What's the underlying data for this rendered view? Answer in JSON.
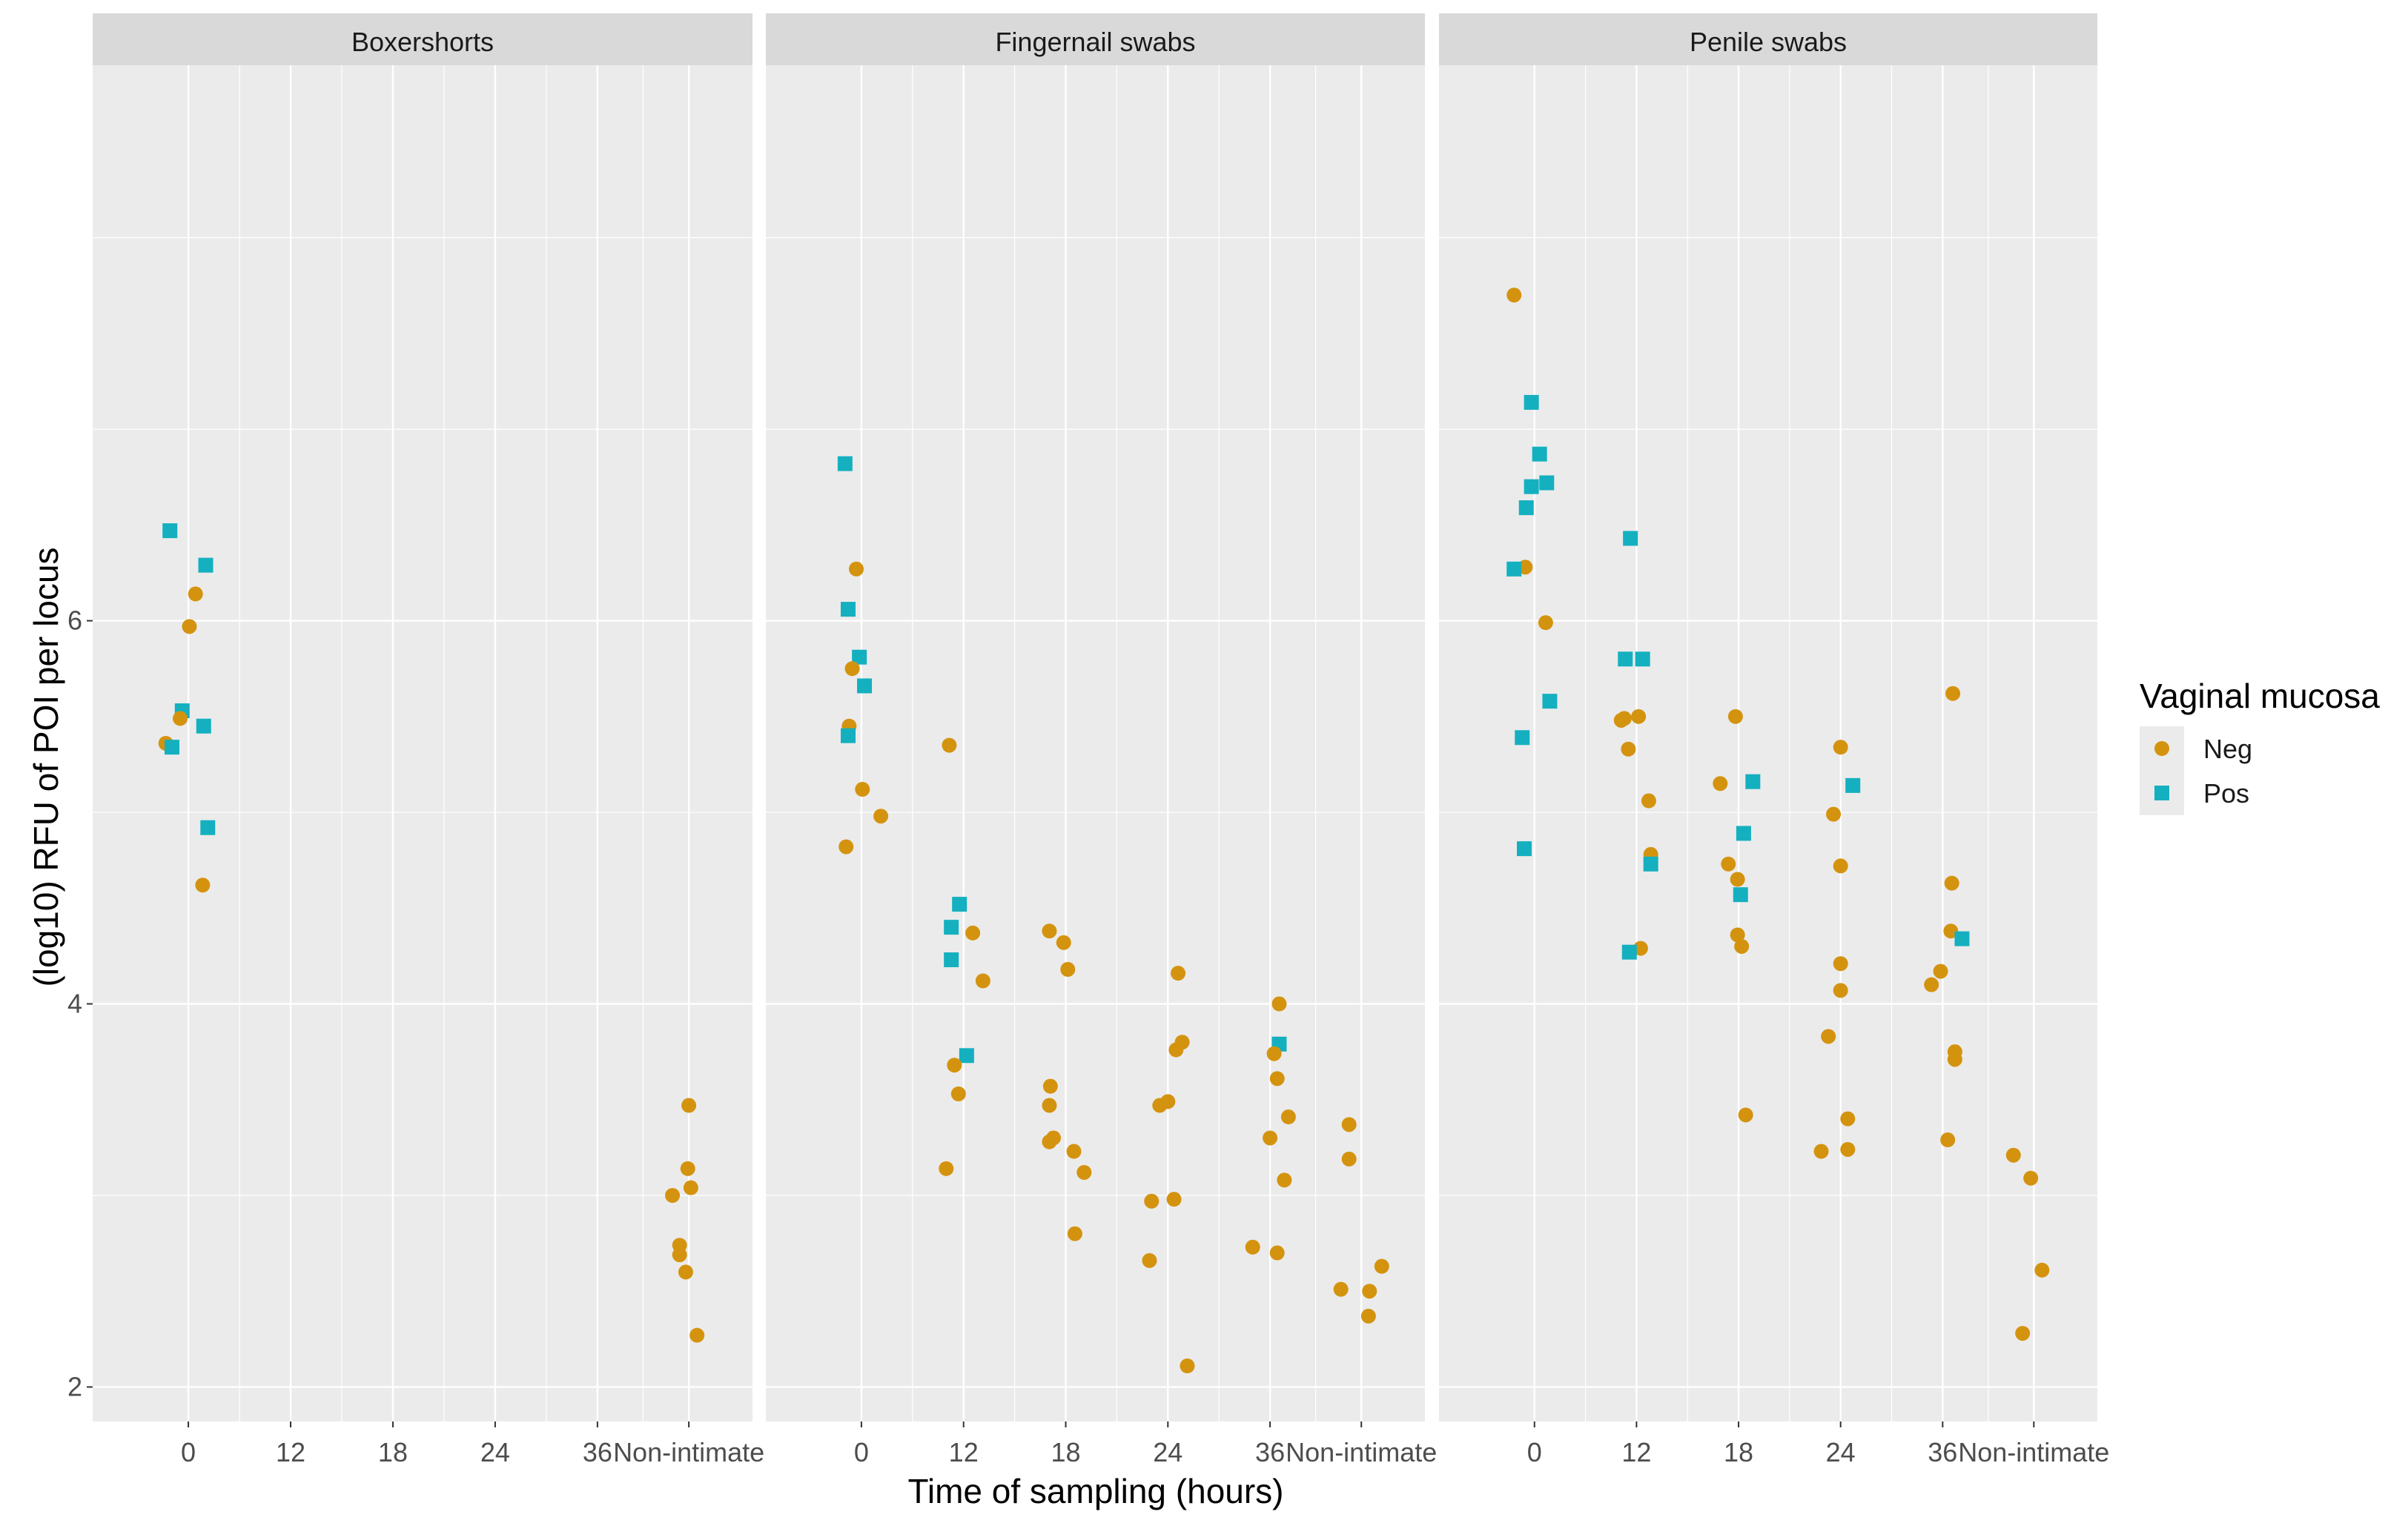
{
  "chart_data": {
    "type": "scatter",
    "facet_type": "facet_wrap",
    "title": "",
    "xlabel": "Time of sampling (hours)",
    "ylabel": "(log10) RFU of POI per locus",
    "x_categories": [
      "0",
      "12",
      "18",
      "24",
      "36",
      "Non-intimate"
    ],
    "ylim": [
      1.82,
      8.9
    ],
    "y_ticks": [
      2,
      4,
      6
    ],
    "legend": {
      "title": "Vaginal mucosa",
      "position": "right",
      "entries": [
        {
          "name": "Neg",
          "color": "#d4930f",
          "shape": "circle"
        },
        {
          "name": "Pos",
          "color": "#14b0c0",
          "shape": "square"
        }
      ]
    },
    "facets": [
      {
        "name": "Boxershorts",
        "points": [
          {
            "x": "0",
            "jitter": -0.18,
            "y": 6.47,
            "group": "Pos"
          },
          {
            "x": "0",
            "jitter": 0.17,
            "y": 6.29,
            "group": "Pos"
          },
          {
            "x": "0",
            "jitter": 0.07,
            "y": 6.14,
            "group": "Neg"
          },
          {
            "x": "0",
            "jitter": 0.01,
            "y": 5.97,
            "group": "Neg"
          },
          {
            "x": "0",
            "jitter": -0.06,
            "y": 5.53,
            "group": "Pos"
          },
          {
            "x": "0",
            "jitter": -0.08,
            "y": 5.49,
            "group": "Neg"
          },
          {
            "x": "0",
            "jitter": 0.15,
            "y": 5.45,
            "group": "Pos"
          },
          {
            "x": "0",
            "jitter": -0.22,
            "y": 5.36,
            "group": "Neg"
          },
          {
            "x": "0",
            "jitter": -0.16,
            "y": 5.34,
            "group": "Pos"
          },
          {
            "x": "0",
            "jitter": 0.19,
            "y": 4.92,
            "group": "Pos"
          },
          {
            "x": "0",
            "jitter": 0.14,
            "y": 4.62,
            "group": "Neg"
          },
          {
            "x": "Non-intimate",
            "jitter": 0.0,
            "y": 3.47,
            "group": "Neg"
          },
          {
            "x": "Non-intimate",
            "jitter": -0.01,
            "y": 3.14,
            "group": "Neg"
          },
          {
            "x": "Non-intimate",
            "jitter": 0.02,
            "y": 3.04,
            "group": "Neg"
          },
          {
            "x": "Non-intimate",
            "jitter": -0.16,
            "y": 3.0,
            "group": "Neg"
          },
          {
            "x": "Non-intimate",
            "jitter": -0.09,
            "y": 2.74,
            "group": "Neg"
          },
          {
            "x": "Non-intimate",
            "jitter": -0.09,
            "y": 2.69,
            "group": "Neg"
          },
          {
            "x": "Non-intimate",
            "jitter": -0.03,
            "y": 2.6,
            "group": "Neg"
          },
          {
            "x": "Non-intimate",
            "jitter": 0.08,
            "y": 2.27,
            "group": "Neg"
          }
        ]
      },
      {
        "name": "Fingernail swabs",
        "points": [
          {
            "x": "0",
            "jitter": -0.16,
            "y": 6.82,
            "group": "Pos"
          },
          {
            "x": "0",
            "jitter": -0.05,
            "y": 6.27,
            "group": "Neg"
          },
          {
            "x": "0",
            "jitter": -0.13,
            "y": 6.06,
            "group": "Pos"
          },
          {
            "x": "0",
            "jitter": -0.02,
            "y": 5.81,
            "group": "Pos"
          },
          {
            "x": "0",
            "jitter": -0.09,
            "y": 5.75,
            "group": "Neg"
          },
          {
            "x": "0",
            "jitter": 0.03,
            "y": 5.66,
            "group": "Pos"
          },
          {
            "x": "0",
            "jitter": -0.12,
            "y": 5.45,
            "group": "Neg"
          },
          {
            "x": "0",
            "jitter": -0.13,
            "y": 5.4,
            "group": "Pos"
          },
          {
            "x": "0",
            "jitter": 0.01,
            "y": 5.12,
            "group": "Neg"
          },
          {
            "x": "0",
            "jitter": 0.19,
            "y": 4.98,
            "group": "Neg"
          },
          {
            "x": "0",
            "jitter": -0.15,
            "y": 4.82,
            "group": "Neg"
          },
          {
            "x": "12",
            "jitter": -0.14,
            "y": 5.35,
            "group": "Neg"
          },
          {
            "x": "12",
            "jitter": -0.04,
            "y": 4.52,
            "group": "Pos"
          },
          {
            "x": "12",
            "jitter": -0.12,
            "y": 4.4,
            "group": "Pos"
          },
          {
            "x": "12",
            "jitter": 0.09,
            "y": 4.37,
            "group": "Neg"
          },
          {
            "x": "12",
            "jitter": -0.12,
            "y": 4.23,
            "group": "Pos"
          },
          {
            "x": "12",
            "jitter": 0.19,
            "y": 4.12,
            "group": "Neg"
          },
          {
            "x": "12",
            "jitter": 0.03,
            "y": 3.73,
            "group": "Pos"
          },
          {
            "x": "12",
            "jitter": -0.09,
            "y": 3.68,
            "group": "Neg"
          },
          {
            "x": "12",
            "jitter": -0.05,
            "y": 3.53,
            "group": "Neg"
          },
          {
            "x": "12",
            "jitter": -0.17,
            "y": 3.14,
            "group": "Neg"
          },
          {
            "x": "18",
            "jitter": -0.16,
            "y": 4.38,
            "group": "Neg"
          },
          {
            "x": "18",
            "jitter": -0.02,
            "y": 4.32,
            "group": "Neg"
          },
          {
            "x": "18",
            "jitter": 0.02,
            "y": 4.18,
            "group": "Neg"
          },
          {
            "x": "18",
            "jitter": -0.15,
            "y": 3.57,
            "group": "Neg"
          },
          {
            "x": "18",
            "jitter": -0.16,
            "y": 3.47,
            "group": "Neg"
          },
          {
            "x": "18",
            "jitter": -0.12,
            "y": 3.3,
            "group": "Neg"
          },
          {
            "x": "18",
            "jitter": -0.16,
            "y": 3.28,
            "group": "Neg"
          },
          {
            "x": "18",
            "jitter": 0.08,
            "y": 3.23,
            "group": "Neg"
          },
          {
            "x": "18",
            "jitter": 0.18,
            "y": 3.12,
            "group": "Neg"
          },
          {
            "x": "18",
            "jitter": 0.09,
            "y": 2.8,
            "group": "Neg"
          },
          {
            "x": "24",
            "jitter": 0.1,
            "y": 4.16,
            "group": "Neg"
          },
          {
            "x": "24",
            "jitter": 0.14,
            "y": 3.8,
            "group": "Neg"
          },
          {
            "x": "24",
            "jitter": 0.08,
            "y": 3.76,
            "group": "Neg"
          },
          {
            "x": "24",
            "jitter": 0.0,
            "y": 3.49,
            "group": "Neg"
          },
          {
            "x": "24",
            "jitter": -0.08,
            "y": 3.47,
            "group": "Neg"
          },
          {
            "x": "24",
            "jitter": 0.06,
            "y": 2.98,
            "group": "Neg"
          },
          {
            "x": "24",
            "jitter": -0.16,
            "y": 2.97,
            "group": "Neg"
          },
          {
            "x": "24",
            "jitter": -0.18,
            "y": 2.66,
            "group": "Neg"
          },
          {
            "x": "24",
            "jitter": 0.19,
            "y": 2.11,
            "group": "Neg"
          },
          {
            "x": "36",
            "jitter": 0.09,
            "y": 4.0,
            "group": "Neg"
          },
          {
            "x": "36",
            "jitter": 0.09,
            "y": 3.79,
            "group": "Pos"
          },
          {
            "x": "36",
            "jitter": 0.04,
            "y": 3.74,
            "group": "Neg"
          },
          {
            "x": "36",
            "jitter": 0.07,
            "y": 3.61,
            "group": "Neg"
          },
          {
            "x": "36",
            "jitter": 0.18,
            "y": 3.41,
            "group": "Neg"
          },
          {
            "x": "36",
            "jitter": 0.0,
            "y": 3.3,
            "group": "Neg"
          },
          {
            "x": "36",
            "jitter": 0.14,
            "y": 3.08,
            "group": "Neg"
          },
          {
            "x": "36",
            "jitter": -0.17,
            "y": 2.73,
            "group": "Neg"
          },
          {
            "x": "36",
            "jitter": 0.07,
            "y": 2.7,
            "group": "Neg"
          },
          {
            "x": "Non-intimate",
            "jitter": -0.12,
            "y": 3.37,
            "group": "Neg"
          },
          {
            "x": "Non-intimate",
            "jitter": -0.12,
            "y": 3.19,
            "group": "Neg"
          },
          {
            "x": "Non-intimate",
            "jitter": -0.2,
            "y": 2.51,
            "group": "Neg"
          },
          {
            "x": "Non-intimate",
            "jitter": 0.08,
            "y": 2.5,
            "group": "Neg"
          },
          {
            "x": "Non-intimate",
            "jitter": 0.07,
            "y": 2.37,
            "group": "Neg"
          },
          {
            "x": "Non-intimate",
            "jitter": 0.2,
            "y": 2.63,
            "group": "Neg"
          }
        ]
      },
      {
        "name": "Penile swabs",
        "points": [
          {
            "x": "0",
            "jitter": -0.2,
            "y": 7.7,
            "group": "Neg"
          },
          {
            "x": "0",
            "jitter": -0.03,
            "y": 7.14,
            "group": "Pos"
          },
          {
            "x": "0",
            "jitter": 0.05,
            "y": 6.87,
            "group": "Pos"
          },
          {
            "x": "0",
            "jitter": 0.12,
            "y": 6.72,
            "group": "Pos"
          },
          {
            "x": "0",
            "jitter": -0.03,
            "y": 6.7,
            "group": "Pos"
          },
          {
            "x": "0",
            "jitter": -0.08,
            "y": 6.59,
            "group": "Pos"
          },
          {
            "x": "0",
            "jitter": -0.09,
            "y": 6.28,
            "group": "Neg"
          },
          {
            "x": "0",
            "jitter": -0.2,
            "y": 6.27,
            "group": "Pos"
          },
          {
            "x": "0",
            "jitter": 0.11,
            "y": 5.99,
            "group": "Neg"
          },
          {
            "x": "0",
            "jitter": 0.15,
            "y": 5.58,
            "group": "Pos"
          },
          {
            "x": "0",
            "jitter": -0.12,
            "y": 5.39,
            "group": "Pos"
          },
          {
            "x": "0",
            "jitter": -0.1,
            "y": 4.81,
            "group": "Pos"
          },
          {
            "x": "12",
            "jitter": -0.06,
            "y": 6.43,
            "group": "Pos"
          },
          {
            "x": "12",
            "jitter": -0.11,
            "y": 5.8,
            "group": "Pos"
          },
          {
            "x": "12",
            "jitter": 0.06,
            "y": 5.8,
            "group": "Pos"
          },
          {
            "x": "12",
            "jitter": -0.15,
            "y": 5.48,
            "group": "Neg"
          },
          {
            "x": "12",
            "jitter": -0.12,
            "y": 5.49,
            "group": "Neg"
          },
          {
            "x": "12",
            "jitter": 0.02,
            "y": 5.5,
            "group": "Neg"
          },
          {
            "x": "12",
            "jitter": -0.08,
            "y": 5.33,
            "group": "Neg"
          },
          {
            "x": "12",
            "jitter": 0.12,
            "y": 5.06,
            "group": "Neg"
          },
          {
            "x": "12",
            "jitter": 0.14,
            "y": 4.78,
            "group": "Neg"
          },
          {
            "x": "12",
            "jitter": 0.14,
            "y": 4.73,
            "group": "Pos"
          },
          {
            "x": "12",
            "jitter": 0.04,
            "y": 4.29,
            "group": "Neg"
          },
          {
            "x": "12",
            "jitter": -0.07,
            "y": 4.27,
            "group": "Pos"
          },
          {
            "x": "18",
            "jitter": -0.03,
            "y": 5.5,
            "group": "Neg"
          },
          {
            "x": "18",
            "jitter": -0.18,
            "y": 5.15,
            "group": "Neg"
          },
          {
            "x": "18",
            "jitter": 0.14,
            "y": 5.16,
            "group": "Pos"
          },
          {
            "x": "18",
            "jitter": 0.05,
            "y": 4.89,
            "group": "Pos"
          },
          {
            "x": "18",
            "jitter": -0.1,
            "y": 4.73,
            "group": "Neg"
          },
          {
            "x": "18",
            "jitter": -0.01,
            "y": 4.65,
            "group": "Neg"
          },
          {
            "x": "18",
            "jitter": 0.02,
            "y": 4.57,
            "group": "Pos"
          },
          {
            "x": "18",
            "jitter": -0.01,
            "y": 4.36,
            "group": "Neg"
          },
          {
            "x": "18",
            "jitter": 0.03,
            "y": 4.3,
            "group": "Neg"
          },
          {
            "x": "18",
            "jitter": 0.07,
            "y": 3.42,
            "group": "Neg"
          },
          {
            "x": "24",
            "jitter": 0.0,
            "y": 5.34,
            "group": "Neg"
          },
          {
            "x": "24",
            "jitter": 0.12,
            "y": 5.14,
            "group": "Pos"
          },
          {
            "x": "24",
            "jitter": -0.07,
            "y": 4.99,
            "group": "Neg"
          },
          {
            "x": "24",
            "jitter": 0.0,
            "y": 4.72,
            "group": "Neg"
          },
          {
            "x": "24",
            "jitter": 0.0,
            "y": 4.21,
            "group": "Neg"
          },
          {
            "x": "24",
            "jitter": 0.0,
            "y": 4.07,
            "group": "Neg"
          },
          {
            "x": "24",
            "jitter": -0.12,
            "y": 3.83,
            "group": "Neg"
          },
          {
            "x": "24",
            "jitter": 0.07,
            "y": 3.4,
            "group": "Neg"
          },
          {
            "x": "24",
            "jitter": -0.19,
            "y": 3.23,
            "group": "Neg"
          },
          {
            "x": "24",
            "jitter": 0.07,
            "y": 3.24,
            "group": "Neg"
          },
          {
            "x": "36",
            "jitter": 0.1,
            "y": 5.62,
            "group": "Neg"
          },
          {
            "x": "36",
            "jitter": 0.09,
            "y": 4.63,
            "group": "Neg"
          },
          {
            "x": "36",
            "jitter": 0.08,
            "y": 4.38,
            "group": "Neg"
          },
          {
            "x": "36",
            "jitter": 0.19,
            "y": 4.34,
            "group": "Pos"
          },
          {
            "x": "36",
            "jitter": -0.02,
            "y": 4.17,
            "group": "Neg"
          },
          {
            "x": "36",
            "jitter": -0.11,
            "y": 4.1,
            "group": "Neg"
          },
          {
            "x": "36",
            "jitter": 0.12,
            "y": 3.75,
            "group": "Neg"
          },
          {
            "x": "36",
            "jitter": 0.12,
            "y": 3.71,
            "group": "Neg"
          },
          {
            "x": "36",
            "jitter": 0.05,
            "y": 3.29,
            "group": "Neg"
          },
          {
            "x": "Non-intimate",
            "jitter": -0.2,
            "y": 3.21,
            "group": "Neg"
          },
          {
            "x": "Non-intimate",
            "jitter": -0.03,
            "y": 3.09,
            "group": "Neg"
          },
          {
            "x": "Non-intimate",
            "jitter": 0.08,
            "y": 2.61,
            "group": "Neg"
          },
          {
            "x": "Non-intimate",
            "jitter": -0.11,
            "y": 2.28,
            "group": "Neg"
          }
        ]
      }
    ]
  }
}
